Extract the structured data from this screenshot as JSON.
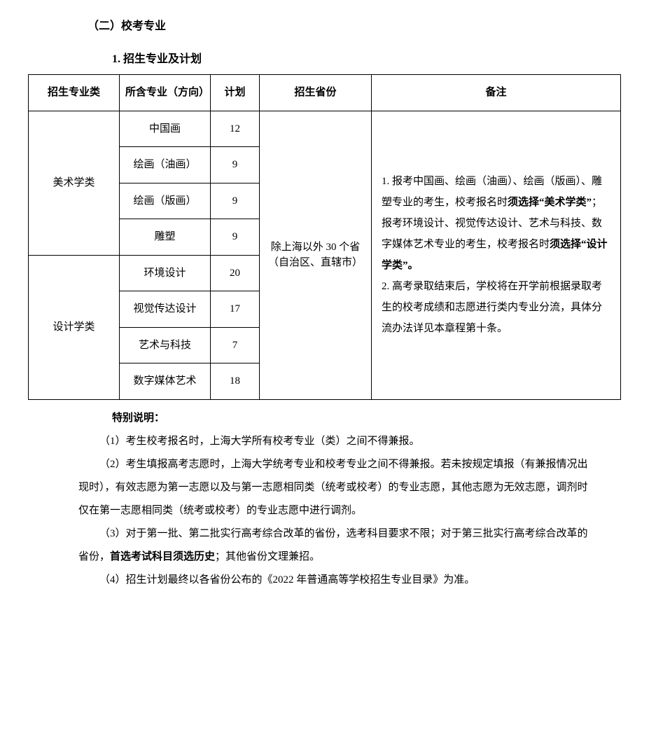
{
  "section": {
    "title": "（二）校考专业",
    "subtitle": "1. 招生专业及计划"
  },
  "table": {
    "headers": {
      "category": "招生专业类",
      "major": "所含专业（方向）",
      "plan": "计划",
      "province": "招生省份",
      "notes": "备注"
    },
    "categories": [
      {
        "name": "美术学类",
        "rowspan": 4
      },
      {
        "name": "设计学类",
        "rowspan": 4
      }
    ],
    "rows": [
      {
        "major": "中国画",
        "plan": 12
      },
      {
        "major": "绘画（油画）",
        "plan": 9
      },
      {
        "major": "绘画（版画）",
        "plan": 9
      },
      {
        "major": "雕塑",
        "plan": 9
      },
      {
        "major": "环境设计",
        "plan": 20
      },
      {
        "major": "视觉传达设计",
        "plan": 17
      },
      {
        "major": "艺术与科技",
        "plan": 7
      },
      {
        "major": "数字媒体艺术",
        "plan": 18
      }
    ],
    "province_text": "除上海以外 30 个省（自治区、直辖市）",
    "notes_html": {
      "part1": "1. 报考中国画、绘画（油画）、绘画（版画）、雕塑专业的考生，校考报名时",
      "bold1": "须选择“美术学类”",
      "part2": "；报考环境设计、视觉传达设计、艺术与科技、数字媒体艺术专业的考生，校考报名时",
      "bold2": "须选择“设计学类”。",
      "part3": "2. 高考录取结束后，学校将在开学前根据录取考生的校考成绩和志愿进行类内专业分流，具体分流办法详见本章程第十条。"
    }
  },
  "extra": {
    "title": "特别说明：",
    "p1": "（1）考生校考报名时，上海大学所有校考专业（类）之间不得兼报。",
    "p2": "（2）考生填报高考志愿时，上海大学统考专业和校考专业之间不得兼报。若未按规定填报（有兼报情况出现时），有效志愿为第一志愿以及与第一志愿相同类（统考或校考）的专业志愿，其他志愿为无效志愿，调剂时仅在第一志愿相同类（统考或校考）的专业志愿中进行调剂。",
    "p3_prefix": "（3）对于第一批、第二批实行高考综合改革的省份，选考科目要求不限；对于第三批实行高考综合改革的省份，",
    "p3_bold": "首选考试科目须选历史",
    "p3_suffix": "；其他省份文理兼招。",
    "p4": "（4）招生计划最终以各省份公布的《2022 年普通高等学校招生专业目录》为准。"
  }
}
